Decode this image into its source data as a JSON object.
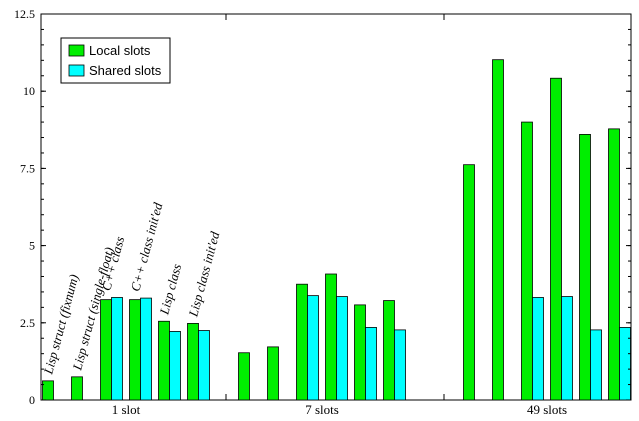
{
  "chart_data": {
    "type": "bar",
    "ylim": [
      0,
      12.5
    ],
    "yticks": [
      "0",
      "2.5",
      "5",
      "7.5",
      "10",
      "12.5"
    ],
    "ytick_values": [
      0,
      2.5,
      5,
      7.5,
      10,
      12.5
    ],
    "grid": false,
    "legend_position": "top-left",
    "groups": [
      "1 slot",
      "7 slots",
      "49 slots"
    ],
    "variants": [
      "Lisp struct (fixnum)",
      "Lisp struct (single-float)",
      "C++ class",
      "C++ class init'ed",
      "Lisp class",
      "Lisp class init'ed"
    ],
    "series": [
      {
        "name": "Local slots",
        "color": "#00ee00",
        "values": [
          [
            0.62,
            0.75,
            3.25,
            3.25,
            2.55,
            2.48
          ],
          [
            1.53,
            1.72,
            3.75,
            4.08,
            3.08,
            3.22
          ],
          [
            7.62,
            11.02,
            9.0,
            10.42,
            8.6,
            8.78
          ]
        ]
      },
      {
        "name": "Shared slots",
        "color": "#00ffff",
        "values": [
          [
            null,
            null,
            3.32,
            3.3,
            2.22,
            2.25
          ],
          [
            null,
            null,
            3.38,
            3.35,
            2.35,
            2.27
          ],
          [
            null,
            null,
            3.32,
            3.35,
            2.27,
            2.35
          ]
        ]
      }
    ]
  }
}
